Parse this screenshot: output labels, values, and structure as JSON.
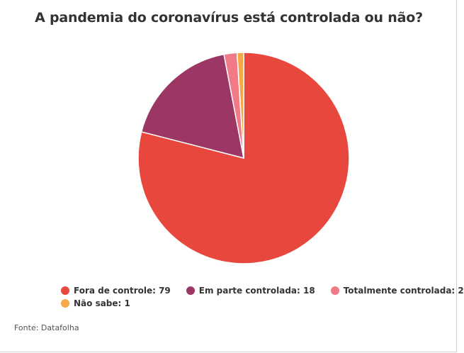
{
  "chart_data": {
    "type": "pie",
    "title": "A pandemia do coronavírus está controlada ou não?",
    "categories": [
      "Fora de controle",
      "Em parte controlada",
      "Totalmente controlada",
      "Não sabe"
    ],
    "values": [
      79,
      18,
      2,
      1
    ],
    "colors": [
      "#e8473d",
      "#9b3665",
      "#f07a85",
      "#f7a94a"
    ],
    "legend_labels": [
      "Fora de controle: 79",
      "Em parte controlada: 18",
      "Totalmente controlada: 2",
      "Não sabe: 1"
    ],
    "legend_position": "bottom",
    "source": "Fonte: Datafolha"
  }
}
